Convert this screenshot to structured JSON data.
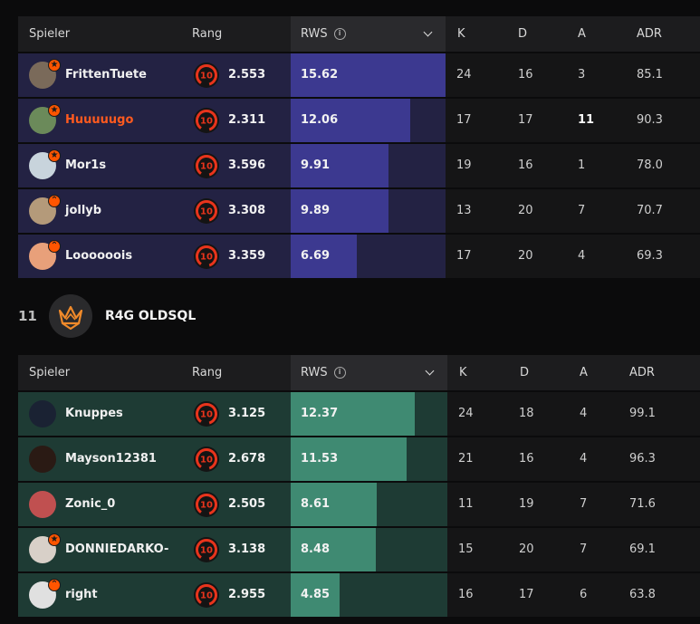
{
  "headers": {
    "player": "Spieler",
    "rank": "Rang",
    "rws": "RWS",
    "info_icon": "i",
    "k": "K",
    "d": "D",
    "a": "A",
    "adr": "ADR"
  },
  "colors": {
    "team1_row": "#232243",
    "team1_bar": "#3c3990",
    "team2_row": "#1e3b34",
    "team2_bar": "#3f8a72",
    "accent": "#ff5500"
  },
  "team1": {
    "players": [
      {
        "name": "FrittenTuete",
        "level": "10",
        "elo": "2.553",
        "rws": "15.62",
        "rws_fraction": 1.0,
        "k": "24",
        "d": "16",
        "a": "3",
        "adr": "85.1",
        "badge": "star",
        "avatar": "#7a6a5a"
      },
      {
        "name": "Huuuuugo",
        "level": "10",
        "elo": "2.311",
        "rws": "12.06",
        "rws_fraction": 0.772,
        "k": "17",
        "d": "17",
        "a": "11",
        "adr": "90.3",
        "badge": "star",
        "avatar": "#6b8a5a",
        "highlight": true
      },
      {
        "name": "Mor1s",
        "level": "10",
        "elo": "3.596",
        "rws": "9.91",
        "rws_fraction": 0.634,
        "k": "19",
        "d": "16",
        "a": "1",
        "adr": "78.0",
        "badge": "star",
        "avatar": "#c8d4dc"
      },
      {
        "name": "jollyb",
        "level": "10",
        "elo": "3.308",
        "rws": "9.89",
        "rws_fraction": 0.633,
        "k": "13",
        "d": "20",
        "a": "7",
        "adr": "70.7",
        "badge": "chevron",
        "avatar": "#b49a7a"
      },
      {
        "name": "Loooooois",
        "level": "10",
        "elo": "3.359",
        "rws": "6.69",
        "rws_fraction": 0.428,
        "k": "17",
        "d": "20",
        "a": "4",
        "adr": "69.3",
        "badge": "chevron",
        "avatar": "#e8a07a"
      }
    ]
  },
  "team2": {
    "rank": "11",
    "name": "R4G OLDSQL",
    "players": [
      {
        "name": "Knuppes",
        "level": "10",
        "elo": "3.125",
        "rws": "12.37",
        "rws_fraction": 0.791,
        "k": "24",
        "d": "18",
        "a": "4",
        "adr": "99.1",
        "badge": "",
        "avatar": "#1a2233"
      },
      {
        "name": "Mayson12381",
        "level": "10",
        "elo": "2.678",
        "rws": "11.53",
        "rws_fraction": 0.738,
        "k": "21",
        "d": "16",
        "a": "4",
        "adr": "96.3",
        "badge": "",
        "avatar": "#2a1a14"
      },
      {
        "name": "Zonic_0",
        "level": "10",
        "elo": "2.505",
        "rws": "8.61",
        "rws_fraction": 0.551,
        "k": "11",
        "d": "19",
        "a": "7",
        "adr": "71.6",
        "badge": "",
        "avatar": "#c05050"
      },
      {
        "name": "DONNIEDARKO-",
        "level": "10",
        "elo": "3.138",
        "rws": "8.48",
        "rws_fraction": 0.543,
        "k": "15",
        "d": "20",
        "a": "7",
        "adr": "69.1",
        "badge": "star",
        "avatar": "#d8d0c8"
      },
      {
        "name": "right",
        "level": "10",
        "elo": "2.955",
        "rws": "4.85",
        "rws_fraction": 0.31,
        "k": "16",
        "d": "17",
        "a": "6",
        "adr": "63.8",
        "badge": "chevron",
        "avatar": "#e0e0e0"
      }
    ]
  }
}
